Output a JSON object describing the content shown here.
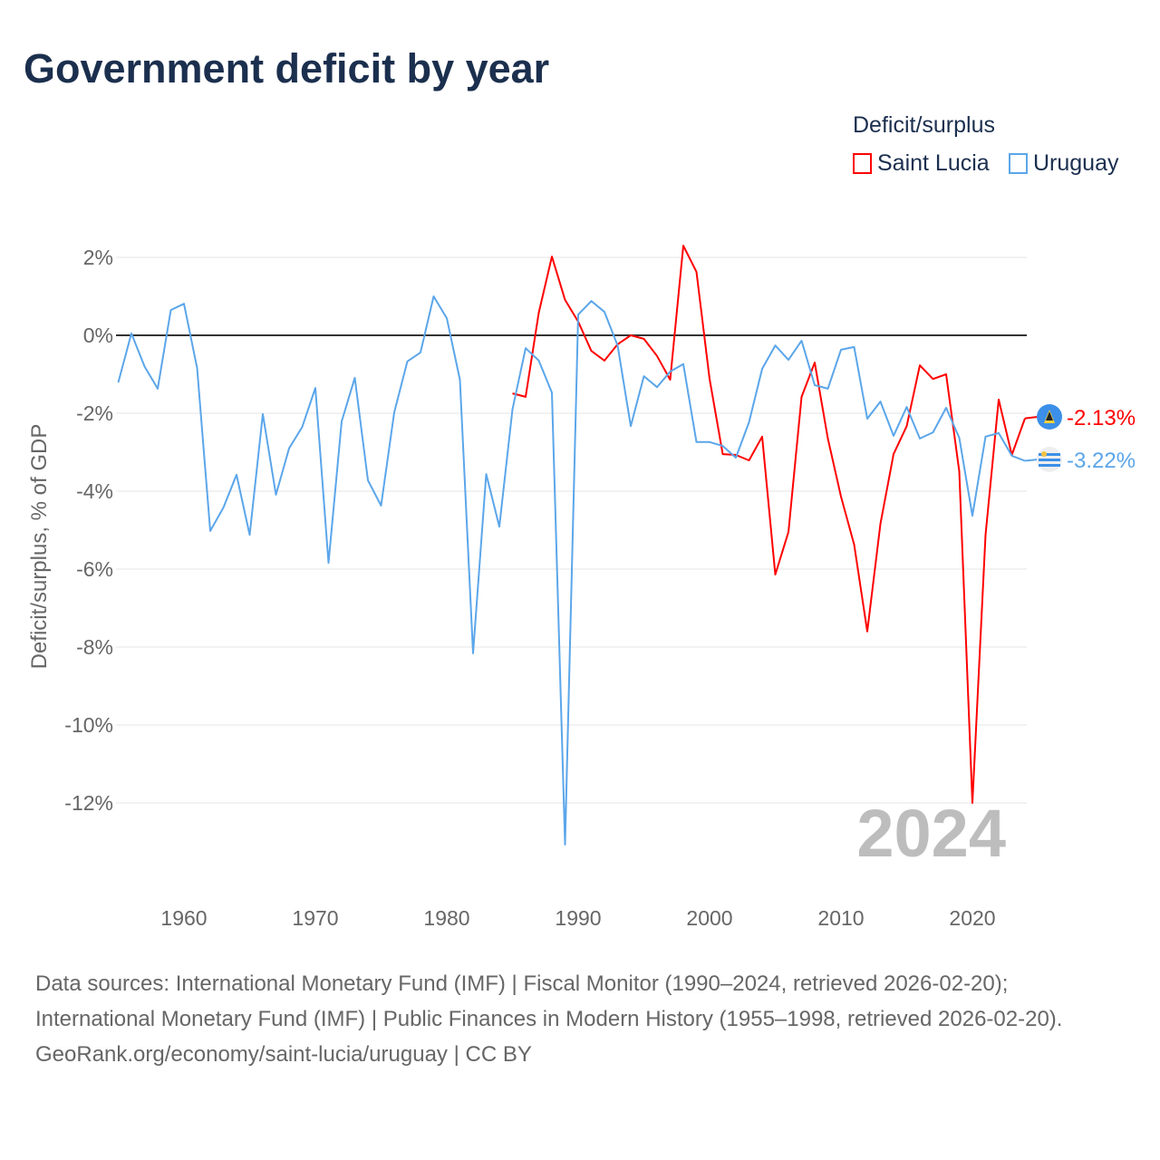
{
  "title": "Government deficit by year",
  "legend": {
    "title": "Deficit/surplus",
    "items": [
      {
        "label": "Saint Lucia",
        "color": "#ff0000"
      },
      {
        "label": "Uruguay",
        "color": "#5ba6ea"
      }
    ]
  },
  "watermark_year": "2024",
  "footer": {
    "sources": "Data sources: International Monetary Fund (IMF) | Fiscal Monitor (1990–2024, retrieved 2026-02-20); International Monetary Fund (IMF) | Public Finances in Modern History (1955–1998, retrieved 2026-02-20).",
    "credit": "GeoRank.org/economy/saint-lucia/uruguay | CC BY"
  },
  "chart_data": {
    "type": "line",
    "title": "Government deficit by year",
    "xlabel": "",
    "ylabel": "Deficit/surplus, % of GDP",
    "xlim": [
      1955,
      2024
    ],
    "ylim": [
      -13.2,
      2.5
    ],
    "x_ticks": [
      1960,
      1970,
      1980,
      1990,
      2000,
      2010,
      2020
    ],
    "y_ticks": [
      2,
      0,
      -2,
      -4,
      -6,
      -8,
      -10,
      -12
    ],
    "y_tick_labels": [
      "2%",
      "0%",
      "-2%",
      "-4%",
      "-6%",
      "-8%",
      "-10%",
      "-12%"
    ],
    "grid": true,
    "legend_position": "top-right",
    "series": [
      {
        "name": "Saint Lucia",
        "color": "#ff0000",
        "start_year": 1985,
        "end_label": "-2.13%",
        "values": [
          -1.49,
          -1.58,
          0.58,
          2.02,
          0.91,
          0.35,
          -0.4,
          -0.65,
          -0.23,
          0.0,
          -0.09,
          -0.53,
          -1.14,
          2.3,
          1.63,
          -1.12,
          -3.05,
          -3.07,
          -3.21,
          -2.6,
          -6.14,
          -5.05,
          -1.58,
          -0.7,
          -2.65,
          -4.14,
          -5.37,
          -7.6,
          -4.84,
          -3.05,
          -2.33,
          -0.77,
          -1.12,
          -1.0,
          -3.49,
          -12.0,
          -5.12,
          -1.65,
          -3.07,
          -2.13
        ]
      },
      {
        "name": "Uruguay",
        "color": "#5ba6ea",
        "start_year": 1955,
        "end_label": "-3.22%",
        "values": [
          -1.21,
          0.05,
          -0.8,
          -1.37,
          0.65,
          0.81,
          -0.84,
          -5.02,
          -4.42,
          -3.58,
          -5.12,
          -2.02,
          -4.09,
          -2.9,
          -2.35,
          -1.35,
          -5.84,
          -2.21,
          -1.09,
          -3.72,
          -4.37,
          -1.98,
          -0.67,
          -0.44,
          1.0,
          0.44,
          -1.14,
          -8.16,
          -3.56,
          -4.91,
          -1.9,
          -0.33,
          -0.65,
          -1.47,
          -13.07,
          0.53,
          0.88,
          0.6,
          -0.26,
          -2.33,
          -1.05,
          -1.33,
          -0.93,
          -0.74,
          -2.74,
          -2.74,
          -2.84,
          -3.14,
          -2.23,
          -0.86,
          -0.26,
          -0.63,
          -0.14,
          -1.28,
          -1.37,
          -0.37,
          -0.3,
          -2.14,
          -1.7,
          -2.58,
          -1.84,
          -2.65,
          -2.49,
          -1.86,
          -2.63,
          -4.63,
          -2.6,
          -2.51,
          -3.09,
          -3.22
        ]
      }
    ]
  }
}
